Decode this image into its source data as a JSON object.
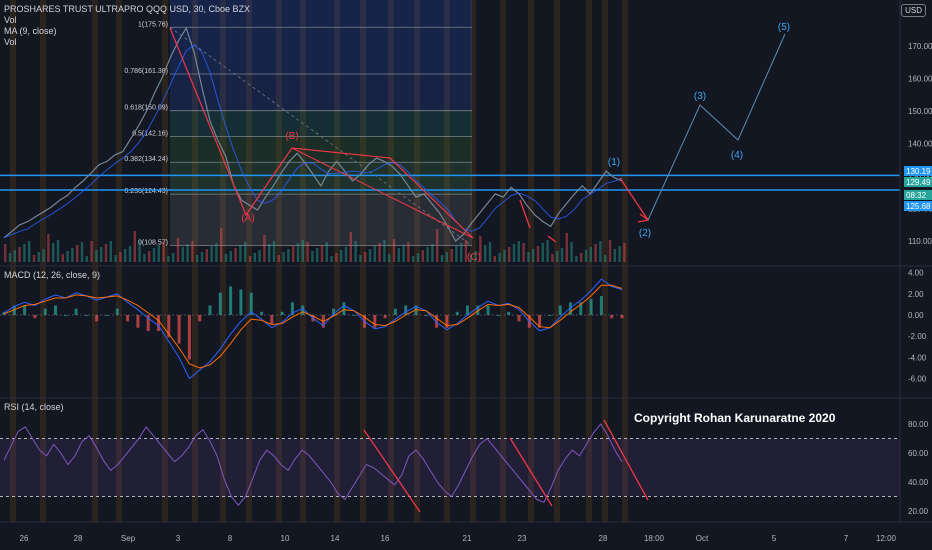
{
  "header": {
    "symbol_line": "PROSHARES TRUST ULTRAPRO QQQ USD, 30, Cboe BZX",
    "indicators": [
      "Vol",
      "MA (9, close)",
      "Vol"
    ],
    "currency": "USD"
  },
  "macd_label": "MACD (12, 26, close, 9)",
  "rsi_label": "RSI (14, close)",
  "copyright": "Copyright Rohan Karunaratne 2020",
  "colors": {
    "background": "#131722",
    "price_line": "#758696",
    "ma_line": "#2962ff",
    "annotation_red": "#f23645",
    "annotation_blue": "#42a5f5",
    "horizontal_lines": "#2196f3",
    "macd": "#2962ff",
    "signal": "#ff6d00",
    "rsi": "#7e57c2",
    "session_highlight": "#ff9800"
  },
  "chart_data": [
    {
      "type": "line",
      "title": "PROSHARES TRUST ULTRAPRO QQQ USD, 30, Cboe BZX",
      "x_labels": [
        "26",
        "28",
        "Sep",
        "3",
        "8",
        "10",
        "14",
        "16",
        "21",
        "23",
        "28",
        "18:00",
        "Oct",
        "5",
        "7",
        "12:00"
      ],
      "y_ticks": [
        "170.00",
        "160.00",
        "150.00",
        "140.00",
        "130.00",
        "120.00",
        "110.00"
      ],
      "price_tags": [
        "130.19",
        "129.49",
        "08:32",
        "125.68"
      ],
      "series": [
        {
          "values": [
            111,
            113,
            115,
            116,
            117.5,
            119,
            120.5,
            122.5,
            124,
            126.5,
            128.5,
            131,
            133.5,
            134.5,
            136.5,
            137.5,
            141.5,
            145.5,
            150,
            155.5,
            160.5,
            166.5,
            171.5,
            175.5,
            168,
            157,
            147,
            141,
            136,
            127,
            122.5,
            121,
            119.5,
            123.5,
            127,
            131,
            134.5,
            137,
            134,
            130.5,
            127,
            131.5,
            134.5,
            131.5,
            128.5,
            130.5,
            133.5,
            135.5,
            134.5,
            133,
            130.5,
            127,
            123.5,
            124.5,
            121.5,
            118.5,
            114.5,
            110,
            112,
            115.5,
            118.5,
            121.5,
            124.5,
            123.5,
            126.5,
            124.5,
            121,
            118,
            116,
            114.5,
            118.5,
            121.5,
            124.5,
            127,
            124.5,
            128,
            131.5,
            129.5,
            128.5
          ]
        }
      ],
      "fibonacci": [
        {
          "label": "1(175.76)",
          "value": 175.76
        },
        {
          "label": "0.786(161.38)",
          "value": 161.38
        },
        {
          "label": "0.618(150.09)",
          "value": 150.09
        },
        {
          "label": "0.5(142.16)",
          "value": 142.16
        },
        {
          "label": "0.382(134.24)",
          "value": 134.24
        },
        {
          "label": "0.236(124.43)",
          "value": 124.43
        },
        {
          "label": "0(108.57)",
          "value": 108.57
        }
      ],
      "wave_labels": [
        "(A)",
        "(B)",
        "(C)",
        "(1)",
        "(2)",
        "(3)",
        "(4)",
        "(5)"
      ],
      "horizontal_lines": [
        130.19,
        125.68
      ]
    },
    {
      "type": "line",
      "title": "MACD (12, 26, close, 9)",
      "y_ticks": [
        "4.00",
        "2.00",
        "0.00",
        "-2.00",
        "-4.00",
        "-6.00"
      ],
      "series": [
        {
          "name": "MACD",
          "values": [
            0.2,
            0.8,
            1.2,
            0.9,
            1.5,
            1.9,
            1.6,
            2.1,
            1.8,
            1.4,
            1.7,
            2.0,
            1.2,
            0.5,
            -0.3,
            -1.0,
            -2.5,
            -4.0,
            -6.0,
            -5.2,
            -4.4,
            -3.2,
            -1.8,
            -0.6,
            0.3,
            -0.4,
            -1.2,
            -0.7,
            0.2,
            0.6,
            -0.3,
            -1.0,
            0.1,
            0.9,
            0.4,
            -0.6,
            -1.3,
            -1.1,
            -0.4,
            0.3,
            0.8,
            0.4,
            -0.7,
            -1.4,
            -0.8,
            0.0,
            0.7,
            1.3,
            0.9,
            1.1,
            0.5,
            -0.6,
            -1.5,
            -1.2,
            -0.2,
            0.7,
            1.4,
            2.3,
            3.4,
            2.7,
            2.4
          ]
        },
        {
          "name": "Signal",
          "values": [
            0.1,
            0.5,
            0.9,
            1.0,
            1.3,
            1.6,
            1.6,
            1.9,
            1.8,
            1.6,
            1.7,
            1.8,
            1.4,
            0.9,
            0.2,
            -0.5,
            -1.8,
            -3.1,
            -4.6,
            -5.0,
            -4.7,
            -3.9,
            -2.7,
            -1.4,
            -0.4,
            -0.5,
            -0.9,
            -0.8,
            -0.2,
            0.3,
            -0.1,
            -0.6,
            -0.1,
            0.5,
            0.4,
            -0.2,
            -0.9,
            -1.0,
            -0.6,
            0.0,
            0.5,
            0.4,
            -0.3,
            -1.0,
            -0.9,
            -0.3,
            0.4,
            1.0,
            0.9,
            1.0,
            0.7,
            -0.2,
            -1.1,
            -1.2,
            -0.5,
            0.3,
            1.0,
            1.8,
            2.8,
            2.8,
            2.5
          ]
        }
      ]
    },
    {
      "type": "line",
      "title": "RSI (14, close)",
      "y_ticks": [
        "80.00",
        "60.00",
        "40.00",
        "20.00"
      ],
      "bands": [
        70,
        30
      ],
      "series": [
        {
          "name": "RSI",
          "values": [
            55,
            65,
            75,
            78,
            70,
            62,
            58,
            66,
            60,
            52,
            58,
            68,
            72,
            64,
            55,
            48,
            52,
            58,
            64,
            70,
            78,
            72,
            66,
            60,
            54,
            58,
            64,
            72,
            76,
            68,
            58,
            42,
            30,
            24,
            30,
            42,
            55,
            62,
            58,
            52,
            48,
            56,
            62,
            58,
            52,
            46,
            40,
            32,
            28,
            36,
            44,
            52,
            50,
            46,
            42,
            38,
            45,
            58,
            62,
            56,
            48,
            40,
            34,
            30,
            38,
            48,
            58,
            66,
            70,
            64,
            58,
            52,
            46,
            40,
            34,
            28,
            26,
            36,
            48,
            56,
            62,
            58,
            66,
            74,
            80,
            72,
            62,
            54
          ]
        }
      ]
    }
  ]
}
